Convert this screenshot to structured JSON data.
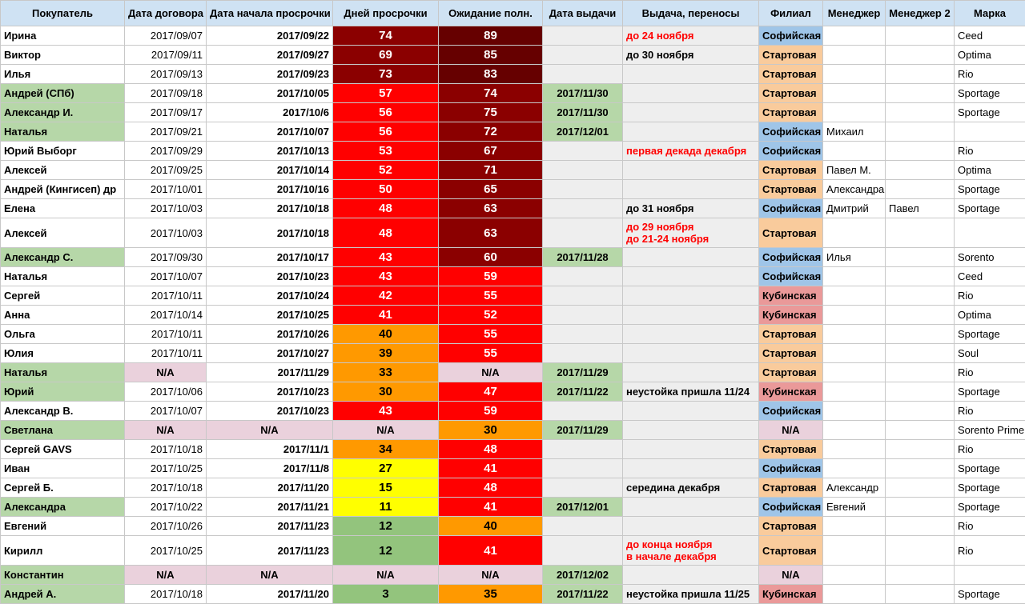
{
  "headers": [
    "Покупатель",
    "Дата договора",
    "Дата начала просрочки",
    "Дней просрочки",
    "Ожидание полн.",
    "Дата выдачи",
    "Выдача, переносы",
    "Филиал",
    "Менеджер",
    "Менеджер 2",
    "Марка"
  ],
  "colors": {
    "header": "#cfe2f3",
    "name_green": "#b6d7a8",
    "na_pink": "#ead1dc",
    "issue_green": "#b6d7a8",
    "note_gray": "#eeeeee",
    "dark_red": "#660000",
    "mid_red": "#8b0000",
    "red": "#ff0000",
    "orange": "#ff9900",
    "yellow": "#ffff00",
    "green": "#93c47d",
    "note_red_text": "#ff0000",
    "branch_blue": "#9fc5e8",
    "branch_orange": "#f9cb9c",
    "branch_pink": "#ea9999"
  },
  "rows": [
    {
      "name": "Ирина",
      "nameBg": "",
      "contract": "2017/09/07",
      "start": "2017/09/22",
      "days": "74",
      "daysBg": "#8b0000",
      "daysFg": "#ffffff",
      "wait": "89",
      "waitBg": "#660000",
      "waitFg": "#ffffff",
      "issue": "",
      "note": "до 24 ноября",
      "noteColor": "#ff0000",
      "branch": "Софийская",
      "branchBg": "#9fc5e8",
      "m1": "",
      "m2": "",
      "brand": "Ceed"
    },
    {
      "name": "Виктор",
      "nameBg": "",
      "contract": "2017/09/11",
      "start": "2017/09/27",
      "days": "69",
      "daysBg": "#8b0000",
      "daysFg": "#ffffff",
      "wait": "85",
      "waitBg": "#660000",
      "waitFg": "#ffffff",
      "issue": "",
      "note": "до 30 ноября",
      "noteColor": "#000000",
      "branch": "Стартовая",
      "branchBg": "#f9cb9c",
      "m1": "",
      "m2": "",
      "brand": "Optima"
    },
    {
      "name": "Илья",
      "nameBg": "",
      "contract": "2017/09/13",
      "start": "2017/09/23",
      "days": "73",
      "daysBg": "#8b0000",
      "daysFg": "#ffffff",
      "wait": "83",
      "waitBg": "#660000",
      "waitFg": "#ffffff",
      "issue": "",
      "note": "",
      "noteColor": "#000000",
      "branch": "Стартовая",
      "branchBg": "#f9cb9c",
      "m1": "",
      "m2": "",
      "brand": "Rio"
    },
    {
      "name": "Андрей (СПб)",
      "nameBg": "#b6d7a8",
      "contract": "2017/09/18",
      "start": "2017/10/05",
      "days": "57",
      "daysBg": "#ff0000",
      "daysFg": "#ffffff",
      "wait": "74",
      "waitBg": "#8b0000",
      "waitFg": "#ffffff",
      "issue": "2017/11/30",
      "note": "",
      "noteColor": "#000000",
      "branch": "Стартовая",
      "branchBg": "#f9cb9c",
      "m1": "",
      "m2": "",
      "brand": "Sportage"
    },
    {
      "name": "Александр И.",
      "nameBg": "#b6d7a8",
      "contract": "2017/09/17",
      "start": "2017/10/6",
      "days": "56",
      "daysBg": "#ff0000",
      "daysFg": "#ffffff",
      "wait": "75",
      "waitBg": "#8b0000",
      "waitFg": "#ffffff",
      "issue": "2017/11/30",
      "note": "",
      "noteColor": "#000000",
      "branch": "Стартовая",
      "branchBg": "#f9cb9c",
      "m1": "",
      "m2": "",
      "brand": "Sportage"
    },
    {
      "name": "Наталья",
      "nameBg": "#b6d7a8",
      "contract": "2017/09/21",
      "start": "2017/10/07",
      "days": "56",
      "daysBg": "#ff0000",
      "daysFg": "#ffffff",
      "wait": "72",
      "waitBg": "#8b0000",
      "waitFg": "#ffffff",
      "issue": "2017/12/01",
      "note": "",
      "noteColor": "#000000",
      "branch": "Софийская",
      "branchBg": "#9fc5e8",
      "m1": "Михаил",
      "m2": "",
      "brand": ""
    },
    {
      "name": "Юрий Выборг",
      "nameBg": "",
      "contract": "2017/09/29",
      "start": "2017/10/13",
      "days": "53",
      "daysBg": "#ff0000",
      "daysFg": "#ffffff",
      "wait": "67",
      "waitBg": "#8b0000",
      "waitFg": "#ffffff",
      "issue": "",
      "note": "первая декада декабря",
      "noteColor": "#ff0000",
      "branch": "Софийская",
      "branchBg": "#9fc5e8",
      "m1": "",
      "m2": "",
      "brand": "Rio"
    },
    {
      "name": "Алексей",
      "nameBg": "",
      "contract": "2017/09/25",
      "start": "2017/10/14",
      "days": "52",
      "daysBg": "#ff0000",
      "daysFg": "#ffffff",
      "wait": "71",
      "waitBg": "#8b0000",
      "waitFg": "#ffffff",
      "issue": "",
      "note": "",
      "noteColor": "#000000",
      "branch": "Стартовая",
      "branchBg": "#f9cb9c",
      "m1": "Павел М.",
      "m2": "",
      "brand": "Optima"
    },
    {
      "name": "Андрей (Кингисеп) др",
      "nameBg": "",
      "contract": "2017/10/01",
      "start": "2017/10/16",
      "days": "50",
      "daysBg": "#ff0000",
      "daysFg": "#ffffff",
      "wait": "65",
      "waitBg": "#8b0000",
      "waitFg": "#ffffff",
      "issue": "",
      "note": "",
      "noteColor": "#000000",
      "branch": "Стартовая",
      "branchBg": "#f9cb9c",
      "m1": "Александра",
      "m2": "",
      "brand": "Sportage"
    },
    {
      "name": "Елена",
      "nameBg": "",
      "contract": "2017/10/03",
      "start": "2017/10/18",
      "days": "48",
      "daysBg": "#ff0000",
      "daysFg": "#ffffff",
      "wait": "63",
      "waitBg": "#8b0000",
      "waitFg": "#ffffff",
      "issue": "",
      "note": "до 31 ноября",
      "noteColor": "#000000",
      "branch": "Софийская",
      "branchBg": "#9fc5e8",
      "m1": "Дмитрий",
      "m2": "Павел",
      "brand": "Sportage"
    },
    {
      "name": "Алексей",
      "nameBg": "",
      "contract": "2017/10/03",
      "start": "2017/10/18",
      "days": "48",
      "daysBg": "#ff0000",
      "daysFg": "#ffffff",
      "wait": "63",
      "waitBg": "#8b0000",
      "waitFg": "#ffffff",
      "issue": "",
      "note": "до 29 ноября",
      "note2": "до 21-24 ноября",
      "noteColor": "#ff0000",
      "tall": true,
      "branch": "Стартовая",
      "branchBg": "#f9cb9c",
      "m1": "",
      "m2": "",
      "brand": ""
    },
    {
      "name": "Александр С.",
      "nameBg": "#b6d7a8",
      "contract": "2017/09/30",
      "start": "2017/10/17",
      "days": "43",
      "daysBg": "#ff0000",
      "daysFg": "#ffffff",
      "wait": "60",
      "waitBg": "#8b0000",
      "waitFg": "#ffffff",
      "issue": "2017/11/28",
      "note": "",
      "noteColor": "#000000",
      "branch": "Софийская",
      "branchBg": "#9fc5e8",
      "m1": "Илья",
      "m2": "",
      "brand": "Sorento"
    },
    {
      "name": "Наталья",
      "nameBg": "",
      "contract": "2017/10/07",
      "start": "2017/10/23",
      "days": "43",
      "daysBg": "#ff0000",
      "daysFg": "#ffffff",
      "wait": "59",
      "waitBg": "#ff0000",
      "waitFg": "#ffffff",
      "issue": "",
      "note": "",
      "noteColor": "#000000",
      "branch": "Софийская",
      "branchBg": "#9fc5e8",
      "m1": "",
      "m2": "",
      "brand": "Ceed"
    },
    {
      "name": "Сергей",
      "nameBg": "",
      "contract": "2017/10/11",
      "start": "2017/10/24",
      "days": "42",
      "daysBg": "#ff0000",
      "daysFg": "#ffffff",
      "wait": "55",
      "waitBg": "#ff0000",
      "waitFg": "#ffffff",
      "issue": "",
      "note": "",
      "noteColor": "#000000",
      "branch": "Кубинская",
      "branchBg": "#ea9999",
      "m1": "",
      "m2": "",
      "brand": "Rio"
    },
    {
      "name": "Анна",
      "nameBg": "",
      "contract": "2017/10/14",
      "start": "2017/10/25",
      "days": "41",
      "daysBg": "#ff0000",
      "daysFg": "#ffffff",
      "wait": "52",
      "waitBg": "#ff0000",
      "waitFg": "#ffffff",
      "issue": "",
      "note": "",
      "noteColor": "#000000",
      "branch": "Кубинская",
      "branchBg": "#ea9999",
      "m1": "",
      "m2": "",
      "brand": "Optima"
    },
    {
      "name": "Ольга",
      "nameBg": "",
      "contract": "2017/10/11",
      "start": "2017/10/26",
      "days": "40",
      "daysBg": "#ff9900",
      "daysFg": "#000000",
      "wait": "55",
      "waitBg": "#ff0000",
      "waitFg": "#ffffff",
      "issue": "",
      "note": "",
      "noteColor": "#000000",
      "branch": "Стартовая",
      "branchBg": "#f9cb9c",
      "m1": "",
      "m2": "",
      "brand": "Sportage"
    },
    {
      "name": "Юлия",
      "nameBg": "",
      "contract": "2017/10/11",
      "start": "2017/10/27",
      "days": "39",
      "daysBg": "#ff9900",
      "daysFg": "#000000",
      "wait": "55",
      "waitBg": "#ff0000",
      "waitFg": "#ffffff",
      "issue": "",
      "note": "",
      "noteColor": "#000000",
      "branch": "Стартовая",
      "branchBg": "#f9cb9c",
      "m1": "",
      "m2": "",
      "brand": "Soul"
    },
    {
      "name": "Наталья",
      "nameBg": "#b6d7a8",
      "contract": "N/A",
      "contractNA": true,
      "start": "2017/11/29",
      "days": "33",
      "daysBg": "#ff9900",
      "daysFg": "#000000",
      "wait": "N/A",
      "waitBg": "#ead1dc",
      "waitFg": "#000000",
      "waitNA": true,
      "issue": "2017/11/29",
      "note": "",
      "noteColor": "#000000",
      "branch": "Стартовая",
      "branchBg": "#f9cb9c",
      "m1": "",
      "m2": "",
      "brand": "Rio"
    },
    {
      "name": "Юрий",
      "nameBg": "#b6d7a8",
      "contract": "2017/10/06",
      "start": "2017/10/23",
      "days": "30",
      "daysBg": "#ff9900",
      "daysFg": "#000000",
      "wait": "47",
      "waitBg": "#ff0000",
      "waitFg": "#ffffff",
      "issue": "2017/11/22",
      "note": "неустойка пришла 11/24",
      "noteColor": "#000000",
      "branch": "Кубинская",
      "branchBg": "#ea9999",
      "m1": "",
      "m2": "",
      "brand": "Sportage"
    },
    {
      "name": "Александр В.",
      "nameBg": "",
      "contract": "2017/10/07",
      "start": "2017/10/23",
      "days": "43",
      "daysBg": "#ff0000",
      "daysFg": "#ffffff",
      "wait": "59",
      "waitBg": "#ff0000",
      "waitFg": "#ffffff",
      "issue": "",
      "note": "",
      "noteColor": "#000000",
      "branch": "Софийская",
      "branchBg": "#9fc5e8",
      "m1": "",
      "m2": "",
      "brand": "Rio"
    },
    {
      "name": "Светлана",
      "nameBg": "#b6d7a8",
      "contract": "N/A",
      "contractNA": true,
      "start": "N/A",
      "startNA": true,
      "days": "N/A",
      "daysBg": "#ead1dc",
      "daysFg": "#000000",
      "daysNA": true,
      "wait": "30",
      "waitBg": "#ff9900",
      "waitFg": "#000000",
      "issue": "2017/11/29",
      "note": "",
      "noteColor": "#000000",
      "branch": "N/A",
      "branchBg": "#ead1dc",
      "branchNA": true,
      "m1": "",
      "m2": "",
      "brand": "Sorento Prime"
    },
    {
      "name": "Сергей GAVS",
      "nameBg": "",
      "contract": "2017/10/18",
      "start": "2017/11/1",
      "days": "34",
      "daysBg": "#ff9900",
      "daysFg": "#000000",
      "wait": "48",
      "waitBg": "#ff0000",
      "waitFg": "#ffffff",
      "issue": "",
      "note": "",
      "noteColor": "#000000",
      "branch": "Стартовая",
      "branchBg": "#f9cb9c",
      "m1": "",
      "m2": "",
      "brand": "Rio"
    },
    {
      "name": "Иван",
      "nameBg": "",
      "contract": "2017/10/25",
      "start": "2017/11/8",
      "days": "27",
      "daysBg": "#ffff00",
      "daysFg": "#000000",
      "wait": "41",
      "waitBg": "#ff0000",
      "waitFg": "#ffffff",
      "issue": "",
      "note": "",
      "noteColor": "#000000",
      "branch": "Софийская",
      "branchBg": "#9fc5e8",
      "m1": "",
      "m2": "",
      "brand": "Sportage"
    },
    {
      "name": "Сергей Б.",
      "nameBg": "",
      "contract": "2017/10/18",
      "start": "2017/11/20",
      "days": "15",
      "daysBg": "#ffff00",
      "daysFg": "#000000",
      "wait": "48",
      "waitBg": "#ff0000",
      "waitFg": "#ffffff",
      "issue": "",
      "note": "середина декабря",
      "noteColor": "#000000",
      "branch": "Стартовая",
      "branchBg": "#f9cb9c",
      "m1": "Александр",
      "m2": "",
      "brand": "Sportage"
    },
    {
      "name": "Александра",
      "nameBg": "#b6d7a8",
      "contract": "2017/10/22",
      "start": "2017/11/21",
      "days": "11",
      "daysBg": "#ffff00",
      "daysFg": "#000000",
      "wait": "41",
      "waitBg": "#ff0000",
      "waitFg": "#ffffff",
      "issue": "2017/12/01",
      "note": "",
      "noteColor": "#000000",
      "branch": "Софийская",
      "branchBg": "#9fc5e8",
      "m1": "Евгений",
      "m2": "",
      "brand": "Sportage"
    },
    {
      "name": "Евгений",
      "nameBg": "",
      "contract": "2017/10/26",
      "start": "2017/11/23",
      "days": "12",
      "daysBg": "#93c47d",
      "daysFg": "#000000",
      "wait": "40",
      "waitBg": "#ff9900",
      "waitFg": "#000000",
      "issue": "",
      "note": "",
      "noteColor": "#000000",
      "branch": "Стартовая",
      "branchBg": "#f9cb9c",
      "m1": "",
      "m2": "",
      "brand": "Rio"
    },
    {
      "name": "Кирилл",
      "nameBg": "",
      "contract": "2017/10/25",
      "start": "2017/11/23",
      "days": "12",
      "daysBg": "#93c47d",
      "daysFg": "#000000",
      "wait": "41",
      "waitBg": "#ff0000",
      "waitFg": "#ffffff",
      "issue": "",
      "note": "до конца ноября",
      "note2": "в начале декабря",
      "noteColor": "#ff0000",
      "tall": true,
      "branch": "Стартовая",
      "branchBg": "#f9cb9c",
      "m1": "",
      "m2": "",
      "brand": "Rio"
    },
    {
      "name": "Константин",
      "nameBg": "#b6d7a8",
      "contract": "N/A",
      "contractNA": true,
      "start": "N/A",
      "startNA": true,
      "days": "N/A",
      "daysBg": "#ead1dc",
      "daysFg": "#000000",
      "daysNA": true,
      "wait": "N/A",
      "waitBg": "#ead1dc",
      "waitFg": "#000000",
      "waitNA": true,
      "issue": "2017/12/02",
      "note": "",
      "noteColor": "#000000",
      "branch": "N/A",
      "branchBg": "#ead1dc",
      "branchNA": true,
      "m1": "",
      "m2": "",
      "brand": ""
    },
    {
      "name": "Андрей А.",
      "nameBg": "#b6d7a8",
      "contract": "2017/10/18",
      "start": "2017/11/20",
      "days": "3",
      "daysBg": "#93c47d",
      "daysFg": "#000000",
      "wait": "35",
      "waitBg": "#ff9900",
      "waitFg": "#000000",
      "issue": "2017/11/22",
      "note": "неустойка пришла 11/25",
      "noteColor": "#000000",
      "branch": "Кубинская",
      "branchBg": "#ea9999",
      "m1": "",
      "m2": "",
      "brand": "Sportage"
    }
  ]
}
